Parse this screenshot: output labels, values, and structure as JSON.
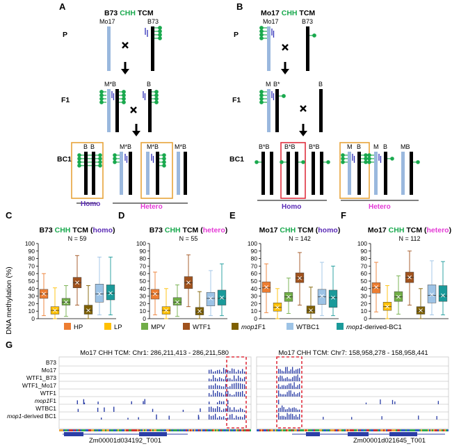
{
  "colors": {
    "HP": "#ed7d31",
    "LP": "#ffc000",
    "MPV": "#70ad47",
    "WTF1": "#a0521d",
    "mop1F1": "#7f6000",
    "WTBC1": "#9dc3e6",
    "mop1BC1": "#1a9a9a",
    "Mo17_chr": "#9ab8de",
    "B73_chr": "#000000",
    "methyl_dot": "#1aa94e",
    "siRNA_tick": "#2e2eb8",
    "homo_label": "#5b2bb5",
    "hetero_label": "#e43ad6",
    "CHH_green": "#1aa94e",
    "box_orange": "#e8a33a",
    "box_red": "#e0303f",
    "track_bar": "#2b3ea6"
  },
  "panelA": {
    "letter": "A",
    "title_pre": "B73 ",
    "title_chh": "CHH",
    "title_post": " TCM",
    "gen_P": "P",
    "gen_F1": "F1",
    "gen_BC1": "BC1",
    "p_left": "Mo17",
    "p_right": "B73",
    "f1_label": "M*B",
    "bc1_labels": [
      "B",
      "B",
      "M*B",
      "M*B",
      "M*B"
    ],
    "homo": "Homo",
    "hetero": "Hetero"
  },
  "panelB": {
    "letter": "B",
    "title_pre": "Mo17 ",
    "title_chh": "CHH",
    "title_post": " TCM",
    "gen_P": "P",
    "gen_F1": "F1",
    "gen_BC1": "BC1",
    "p_left": "Mo17",
    "p_right": "B73",
    "f1_labels": [
      "M",
      "B*",
      "B"
    ],
    "bc1_labels": [
      "B*B",
      "B*B",
      "B*B",
      "M",
      "B",
      "M",
      "B",
      "MB"
    ],
    "homo": "Homo",
    "hetero": "Hetero"
  },
  "chart_data": [
    {
      "type": "box",
      "panel": "C",
      "title_pre": "B73 ",
      "title_chh": "CHH",
      "title_post": " TCM (",
      "title_mode": "homo",
      "title_close": ")",
      "n_label": "N = 59",
      "ylabel": "DNA methylation (%)",
      "ylim": [
        0,
        100
      ],
      "yticks": [
        0,
        10,
        20,
        30,
        40,
        50,
        60,
        70,
        80,
        90,
        100
      ],
      "series": [
        {
          "name": "HP",
          "min": 4,
          "q1": 27,
          "median": 33,
          "q3": 39,
          "max": 60,
          "mean": 33
        },
        {
          "name": "LP",
          "min": 0,
          "q1": 6,
          "median": 11,
          "q3": 16,
          "max": 41,
          "mean": 11
        },
        {
          "name": "MPV",
          "min": 3,
          "q1": 18,
          "median": 22,
          "q3": 27,
          "max": 44,
          "mean": 22
        },
        {
          "name": "WTF1",
          "min": 18,
          "q1": 41,
          "median": 48,
          "q3": 55,
          "max": 84,
          "mean": 48
        },
        {
          "name": "mop1F1",
          "min": 0,
          "q1": 6,
          "median": 11,
          "q3": 18,
          "max": 44,
          "mean": 11
        },
        {
          "name": "WTBC1",
          "min": 5,
          "q1": 22,
          "median": 33,
          "q3": 46,
          "max": 82,
          "mean": 33
        },
        {
          "name": "mop1-derived-BC1",
          "min": 5,
          "q1": 25,
          "median": 34,
          "q3": 45,
          "max": 82,
          "mean": 34
        }
      ]
    },
    {
      "type": "box",
      "panel": "D",
      "title_pre": "B73 ",
      "title_chh": "CHH",
      "title_post": " TCM (",
      "title_mode": "hetero",
      "title_close": ")",
      "n_label": "N = 55",
      "ylim": [
        0,
        100
      ],
      "yticks": [
        0,
        10,
        20,
        30,
        40,
        50,
        60,
        70,
        80,
        90,
        100
      ],
      "series": [
        {
          "name": "HP",
          "min": 5,
          "q1": 26,
          "median": 33,
          "q3": 39,
          "max": 62,
          "mean": 33
        },
        {
          "name": "LP",
          "min": 0,
          "q1": 6,
          "median": 11,
          "q3": 16,
          "max": 40,
          "mean": 11
        },
        {
          "name": "MPV",
          "min": 3,
          "q1": 18,
          "median": 22,
          "q3": 28,
          "max": 45,
          "mean": 22
        },
        {
          "name": "WTF1",
          "min": 16,
          "q1": 40,
          "median": 48,
          "q3": 56,
          "max": 85,
          "mean": 48
        },
        {
          "name": "mop1F1",
          "min": 0,
          "q1": 5,
          "median": 9,
          "q3": 15,
          "max": 36,
          "mean": 10
        },
        {
          "name": "WTBC1",
          "min": 4,
          "q1": 17,
          "median": 27,
          "q3": 35,
          "max": 64,
          "mean": 27
        },
        {
          "name": "mop1-derived-BC1",
          "min": 4,
          "q1": 18,
          "median": 27,
          "q3": 38,
          "max": 73,
          "mean": 28
        }
      ]
    },
    {
      "type": "box",
      "panel": "E",
      "title_pre": "Mo17 ",
      "title_chh": "CHH",
      "title_post": " TCM (",
      "title_mode": "homo",
      "title_close": ")",
      "n_label": "N = 142",
      "ylim": [
        0,
        100
      ],
      "yticks": [
        0,
        10,
        20,
        30,
        40,
        50,
        60,
        70,
        80,
        90,
        100
      ],
      "series": [
        {
          "name": "HP",
          "min": 8,
          "q1": 35,
          "median": 41,
          "q3": 49,
          "max": 73,
          "mean": 42
        },
        {
          "name": "LP",
          "min": 0,
          "q1": 10,
          "median": 15,
          "q3": 21,
          "max": 40,
          "mean": 15
        },
        {
          "name": "MPV",
          "min": 7,
          "q1": 23,
          "median": 29,
          "q3": 35,
          "max": 54,
          "mean": 29
        },
        {
          "name": "WTF1",
          "min": 18,
          "q1": 48,
          "median": 54,
          "q3": 61,
          "max": 88,
          "mean": 54
        },
        {
          "name": "mop1F1",
          "min": 0,
          "q1": 7,
          "median": 11,
          "q3": 17,
          "max": 42,
          "mean": 11
        },
        {
          "name": "WTBC1",
          "min": 4,
          "q1": 19,
          "median": 29,
          "q3": 39,
          "max": 75,
          "mean": 30
        },
        {
          "name": "mop1-derived-BC1",
          "min": 4,
          "q1": 15,
          "median": 28,
          "q3": 38,
          "max": 70,
          "mean": 28
        }
      ]
    },
    {
      "type": "box",
      "panel": "F",
      "title_pre": "Mo17 ",
      "title_chh": "CHH",
      "title_post": " TCM (",
      "title_mode": "hetero",
      "title_close": ")",
      "n_label": "N = 112",
      "ylim": [
        0,
        100
      ],
      "yticks": [
        0,
        10,
        20,
        30,
        40,
        50,
        60,
        70,
        80,
        90,
        100
      ],
      "series": [
        {
          "name": "HP",
          "min": 9,
          "q1": 34,
          "median": 41,
          "q3": 48,
          "max": 75,
          "mean": 42
        },
        {
          "name": "LP",
          "min": 0,
          "q1": 11,
          "median": 16,
          "q3": 22,
          "max": 44,
          "mean": 16
        },
        {
          "name": "MPV",
          "min": 6,
          "q1": 23,
          "median": 29,
          "q3": 36,
          "max": 57,
          "mean": 29
        },
        {
          "name": "WTF1",
          "min": 18,
          "q1": 48,
          "median": 55,
          "q3": 62,
          "max": 90,
          "mean": 55
        },
        {
          "name": "mop1F1",
          "min": 0,
          "q1": 6,
          "median": 10,
          "q3": 16,
          "max": 40,
          "mean": 11
        },
        {
          "name": "WTBC1",
          "min": 5,
          "q1": 21,
          "median": 31,
          "q3": 45,
          "max": 77,
          "mean": 32
        },
        {
          "name": "mop1-derived-BC1",
          "min": 5,
          "q1": 23,
          "median": 30,
          "q3": 44,
          "max": 76,
          "mean": 31
        }
      ]
    }
  ],
  "legend": [
    {
      "key": "HP",
      "label": "HP",
      "italic_part": "",
      "rest": ""
    },
    {
      "key": "LP",
      "label": "LP",
      "italic_part": "",
      "rest": ""
    },
    {
      "key": "MPV",
      "label": "MPV",
      "italic_part": "",
      "rest": ""
    },
    {
      "key": "WTF1",
      "label": "WTF1",
      "italic_part": "",
      "rest": ""
    },
    {
      "key": "mop1F1",
      "label": "",
      "italic_part": "mop1",
      "rest": "F1"
    },
    {
      "key": "WTBC1",
      "label": "WTBC1",
      "italic_part": "",
      "rest": ""
    },
    {
      "key": "mop1BC1",
      "label": "",
      "italic_part": "mop1",
      "rest": "-derived-BC1"
    }
  ],
  "panelG": {
    "letter": "G",
    "left_title": "Mo17 CHH TCM: Chr1: 286,211,413 - 286,211,580",
    "right_title": "Mo17 CHH TCM: Chr7: 158,958,278 - 158,958,441",
    "tracks": [
      {
        "label": "B73",
        "italic": "",
        "rest": "B73"
      },
      {
        "label": "Mo17",
        "italic": "",
        "rest": "Mo17"
      },
      {
        "label": "WTF1_B73",
        "italic": "",
        "rest": "WTF1_B73"
      },
      {
        "label": "WTF1_Mo17",
        "italic": "",
        "rest": "WTF1_Mo17"
      },
      {
        "label": "WTF1",
        "italic": "",
        "rest": "WTF1"
      },
      {
        "label": "mop1F1",
        "italic": "mop1",
        "rest": "F1"
      },
      {
        "label": "WTBC1",
        "italic": "",
        "rest": "WTBC1"
      },
      {
        "label": "mop1-derived BC1",
        "italic": "mop1",
        "rest": "-derived BC1"
      }
    ],
    "left_gene": "Zm00001d034192_T001",
    "right_gene": "Zm00001d021645_T001"
  }
}
